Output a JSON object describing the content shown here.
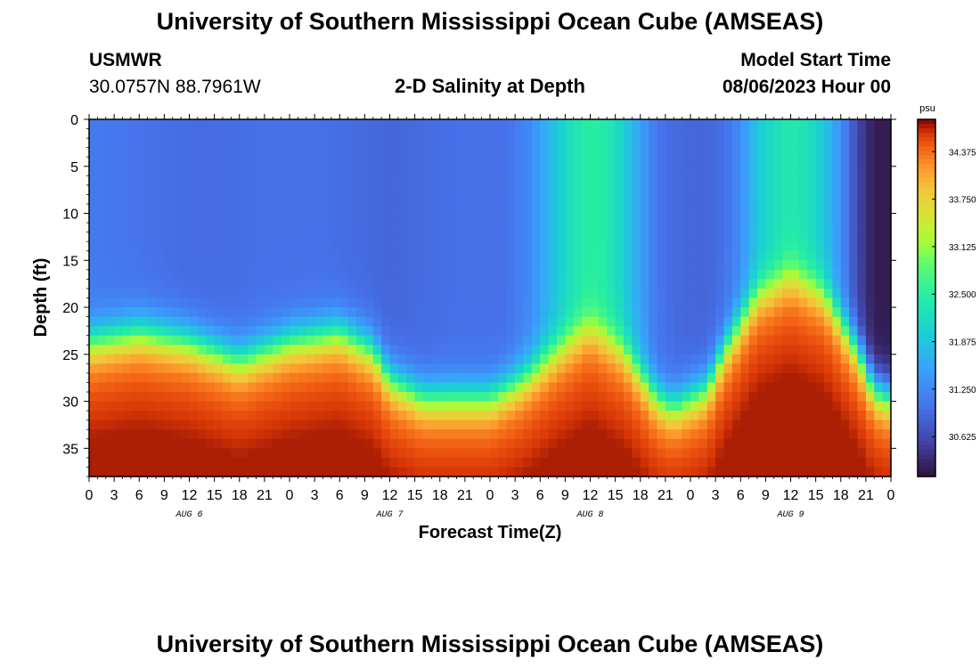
{
  "header": {
    "title": "University of Southern Mississippi Ocean Cube (AMSEAS)",
    "station": "USMWR",
    "coordinates": "30.0757N  88.7961W",
    "plot_title": "2-D Salinity at Depth",
    "start_label": "Model Start Time",
    "start_value": "08/06/2023 Hour 00"
  },
  "footer": {
    "title": "University of Southern Mississippi Ocean Cube (AMSEAS)"
  },
  "chart_data": {
    "type": "heatmap",
    "title": "2-D Salinity at Depth",
    "xlabel": "Forecast Time(Z)",
    "ylabel": "Depth (ft)",
    "x_ticks": [
      "0",
      "3",
      "6",
      "9",
      "12",
      "15",
      "18",
      "21",
      "0",
      "3",
      "6",
      "9",
      "12",
      "15",
      "18",
      "21",
      "0",
      "3",
      "6",
      "9",
      "12",
      "15",
      "18",
      "21",
      "0",
      "3",
      "6",
      "9",
      "12",
      "15",
      "18",
      "21",
      "0"
    ],
    "x_range_hours": [
      0,
      96
    ],
    "day_labels": [
      {
        "label": "AUG 6",
        "hour": 12
      },
      {
        "label": "AUG 7",
        "hour": 36
      },
      {
        "label": "AUG 8",
        "hour": 60
      },
      {
        "label": "AUG 9",
        "hour": 84
      }
    ],
    "y_ticks": [
      0,
      5,
      10,
      15,
      20,
      25,
      30,
      35
    ],
    "y_range_ft": [
      0,
      38
    ],
    "colorbar": {
      "unit": "psu",
      "ticks": [
        "34.375",
        "33.750",
        "33.125",
        "32.500",
        "31.875",
        "31.250",
        "30.625"
      ],
      "range": [
        30.1,
        34.8
      ]
    },
    "model": {
      "surface_salinity_hours": [
        0,
        4,
        8,
        12,
        16,
        20,
        24,
        28,
        32,
        36,
        40,
        44,
        48,
        50,
        53,
        56,
        58,
        60,
        62,
        64,
        66,
        68,
        70,
        72,
        74,
        76,
        78,
        80,
        82,
        84,
        86,
        88,
        90,
        92,
        94,
        96
      ],
      "surface_salinity": [
        31.1,
        31.05,
        31.0,
        30.95,
        30.95,
        31.0,
        31.0,
        31.0,
        30.95,
        30.9,
        30.95,
        31.0,
        31.0,
        31.0,
        31.3,
        31.9,
        32.3,
        32.5,
        32.4,
        32.0,
        31.5,
        31.05,
        30.95,
        30.9,
        30.9,
        31.0,
        31.3,
        31.9,
        32.2,
        32.4,
        32.25,
        31.9,
        31.3,
        30.6,
        30.2,
        30.2
      ],
      "halocline_depth_hours": [
        0,
        6,
        12,
        18,
        24,
        30,
        34,
        36,
        40,
        44,
        48,
        52,
        56,
        60,
        64,
        68,
        70,
        72,
        74,
        76,
        80,
        84,
        88,
        92,
        94,
        96
      ],
      "halocline_depth_ft": [
        22,
        21,
        22,
        24,
        22,
        21,
        23,
        26,
        28,
        28,
        28,
        26,
        23,
        20.5,
        23,
        28,
        29,
        28,
        27,
        23,
        17,
        15,
        17,
        23,
        27,
        28
      ]
    }
  }
}
